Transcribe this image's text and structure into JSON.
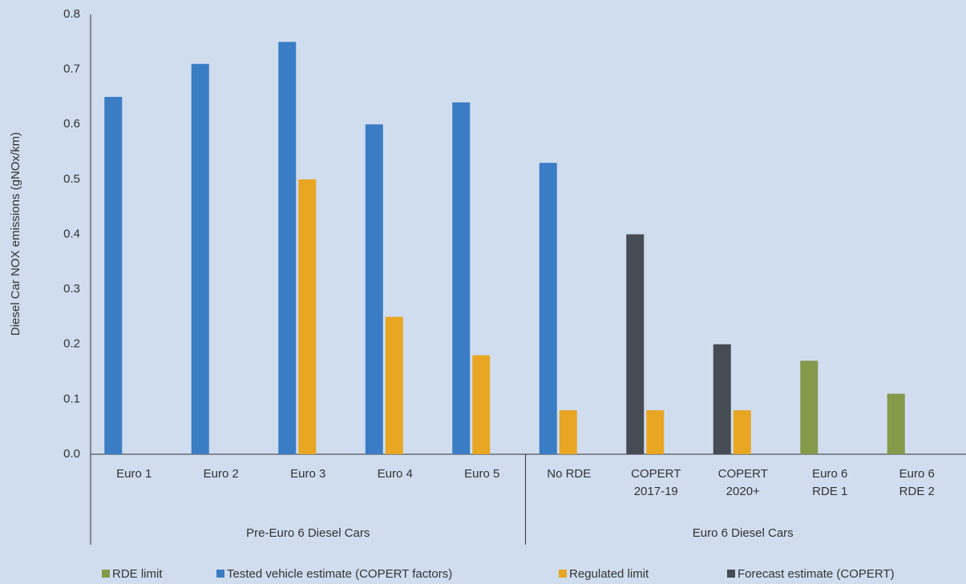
{
  "chart_data": {
    "type": "bar",
    "y_label": "Diesel Car NOX emissions (gNOx/km)",
    "categories": [
      [
        "Euro 1"
      ],
      [
        "Euro 2"
      ],
      [
        "Euro 3"
      ],
      [
        "Euro 4"
      ],
      [
        "Euro 5"
      ],
      [
        "No RDE"
      ],
      [
        "COPERT",
        "2017-19"
      ],
      [
        "COPERT",
        "2020+"
      ],
      [
        "Euro 6",
        "RDE 1"
      ],
      [
        "Euro 6",
        "RDE 2"
      ]
    ],
    "groups": [
      "Pre-Euro 6 Diesel Cars",
      "Euro 6 Diesel Cars"
    ],
    "series": [
      {
        "name": "RDE limit",
        "color": "#84994a",
        "values": [
          null,
          null,
          null,
          null,
          null,
          null,
          null,
          null,
          0.17,
          0.11
        ]
      },
      {
        "name": "Tested vehicle estimate (COPERT factors)",
        "color": "#3a7dc4",
        "values": [
          0.65,
          0.71,
          0.75,
          0.6,
          0.64,
          0.53,
          null,
          null,
          null,
          null
        ]
      },
      {
        "name": "Regulated limit",
        "color": "#e8a623",
        "values": [
          null,
          null,
          0.5,
          0.25,
          0.18,
          0.08,
          0.08,
          0.08,
          null,
          null
        ]
      },
      {
        "name": "Forecast estimate (COPERT)",
        "color": "#454c54",
        "values": [
          null,
          null,
          null,
          null,
          null,
          null,
          0.4,
          0.2,
          null,
          null
        ]
      }
    ],
    "ylim": [
      0,
      0.8
    ],
    "yticks": [
      {
        "value": 0,
        "label": "0.0"
      },
      0.1,
      0.2,
      0.3,
      0.4,
      0.5,
      0.6,
      0.7,
      0.8
    ],
    "legend": "bottom"
  }
}
